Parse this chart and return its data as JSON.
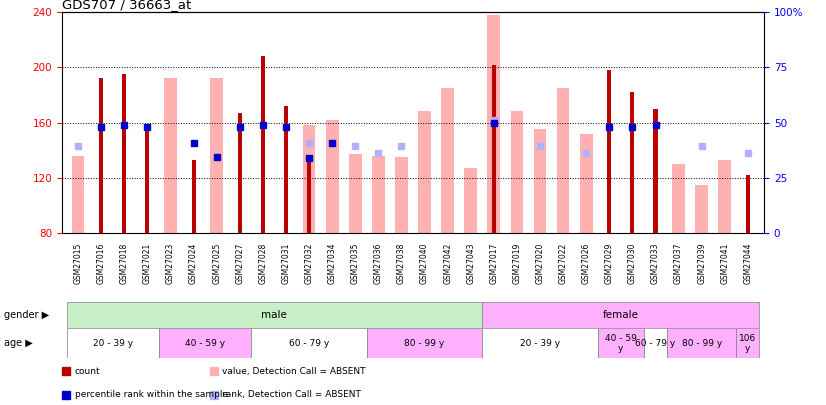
{
  "title": "GDS707 / 36663_at",
  "samples": [
    "GSM27015",
    "GSM27016",
    "GSM27018",
    "GSM27021",
    "GSM27023",
    "GSM27024",
    "GSM27025",
    "GSM27027",
    "GSM27028",
    "GSM27031",
    "GSM27032",
    "GSM27034",
    "GSM27035",
    "GSM27036",
    "GSM27038",
    "GSM27040",
    "GSM27042",
    "GSM27043",
    "GSM27017",
    "GSM27019",
    "GSM27020",
    "GSM27022",
    "GSM27026",
    "GSM27029",
    "GSM27030",
    "GSM27033",
    "GSM27037",
    "GSM27039",
    "GSM27041",
    "GSM27044"
  ],
  "count_values": [
    null,
    192,
    195,
    157,
    null,
    133,
    null,
    167,
    208,
    172,
    134,
    null,
    null,
    null,
    null,
    null,
    null,
    null,
    202,
    null,
    null,
    null,
    null,
    198,
    182,
    170,
    null,
    null,
    null,
    122
  ],
  "rank_values": [
    null,
    157,
    158,
    157,
    null,
    145,
    135,
    157,
    158,
    157,
    134,
    145,
    null,
    null,
    null,
    null,
    null,
    null,
    160,
    null,
    null,
    null,
    null,
    157,
    157,
    158,
    null,
    null,
    null,
    null
  ],
  "absent_count_values": [
    136,
    null,
    null,
    null,
    192,
    null,
    192,
    null,
    null,
    null,
    158,
    162,
    137,
    136,
    135,
    168,
    185,
    127,
    238,
    168,
    155,
    185,
    152,
    null,
    null,
    null,
    130,
    115,
    133,
    null
  ],
  "absent_rank_values": [
    143,
    null,
    null,
    null,
    null,
    null,
    null,
    null,
    null,
    null,
    145,
    null,
    143,
    138,
    143,
    null,
    null,
    null,
    162,
    null,
    143,
    null,
    138,
    null,
    null,
    null,
    null,
    143,
    null,
    138
  ],
  "ylim": [
    80,
    240
  ],
  "y2lim": [
    0,
    100
  ],
  "yticks": [
    80,
    120,
    160,
    200,
    240
  ],
  "y2ticks": [
    0,
    25,
    50,
    75,
    100
  ],
  "gender_groups": [
    {
      "label": "male",
      "start": 0,
      "end": 17,
      "color": "#c8f0c8"
    },
    {
      "label": "female",
      "start": 18,
      "end": 29,
      "color": "#ffb0ff"
    }
  ],
  "age_groups": [
    {
      "label": "20 - 39 y",
      "start": 0,
      "end": 3,
      "color": "#ffffff"
    },
    {
      "label": "40 - 59 y",
      "start": 4,
      "end": 7,
      "color": "#ffb0ff"
    },
    {
      "label": "60 - 79 y",
      "start": 8,
      "end": 12,
      "color": "#ffffff"
    },
    {
      "label": "80 - 99 y",
      "start": 13,
      "end": 17,
      "color": "#ffb0ff"
    },
    {
      "label": "20 - 39 y",
      "start": 18,
      "end": 22,
      "color": "#ffffff"
    },
    {
      "label": "40 - 59\ny",
      "start": 23,
      "end": 24,
      "color": "#ffb0ff"
    },
    {
      "label": "60 - 79 y",
      "start": 25,
      "end": 25,
      "color": "#ffffff"
    },
    {
      "label": "80 - 99 y",
      "start": 26,
      "end": 28,
      "color": "#ffb0ff"
    },
    {
      "label": "106\ny",
      "start": 29,
      "end": 29,
      "color": "#ffb0ff"
    }
  ],
  "count_color": "#bb0000",
  "rank_color": "#0000cc",
  "absent_count_color": "#ffb0b0",
  "absent_rank_color": "#b0b0ff",
  "legend_items": [
    {
      "label": "count",
      "color": "#bb0000"
    },
    {
      "label": "percentile rank within the sample",
      "color": "#0000cc"
    },
    {
      "label": "value, Detection Call = ABSENT",
      "color": "#ffb0b0"
    },
    {
      "label": "rank, Detection Call = ABSENT",
      "color": "#b0b0ff"
    }
  ],
  "absent_bar_width": 0.55,
  "count_bar_width": 0.18,
  "marker_size": 4
}
